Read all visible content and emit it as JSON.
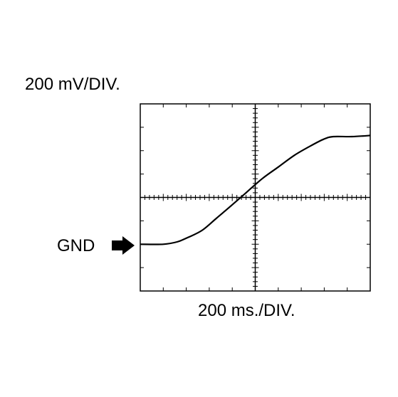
{
  "scope": {
    "vertical_scale": "200 mV/DIV.",
    "horizontal_scale": "200 ms./DIV.",
    "ground_marker": "GND",
    "divisions": {
      "x": 10,
      "y": 8
    },
    "colors": {
      "trace": "#000000",
      "grid": "#000000",
      "background": "#ffffff"
    }
  },
  "chart_data": {
    "type": "line",
    "xlabel": "200 ms./DIV.",
    "ylabel": "200 mV/DIV.",
    "x_unit": "division",
    "y_unit": "division above GND",
    "xlim": [
      0,
      10
    ],
    "ylim": [
      -2,
      6
    ],
    "grid": false,
    "series": [
      {
        "x": [
          0,
          1.0,
          1.6,
          2.1,
          2.7,
          3.3,
          3.9,
          4.6,
          5.3,
          6.0,
          6.7,
          7.4,
          8.0,
          8.4,
          9.2,
          10
        ],
        "y": [
          0,
          0,
          0.1,
          0.3,
          0.6,
          1.1,
          1.6,
          2.2,
          2.8,
          3.3,
          3.8,
          4.2,
          4.5,
          4.6,
          4.6,
          4.65
        ]
      }
    ]
  }
}
